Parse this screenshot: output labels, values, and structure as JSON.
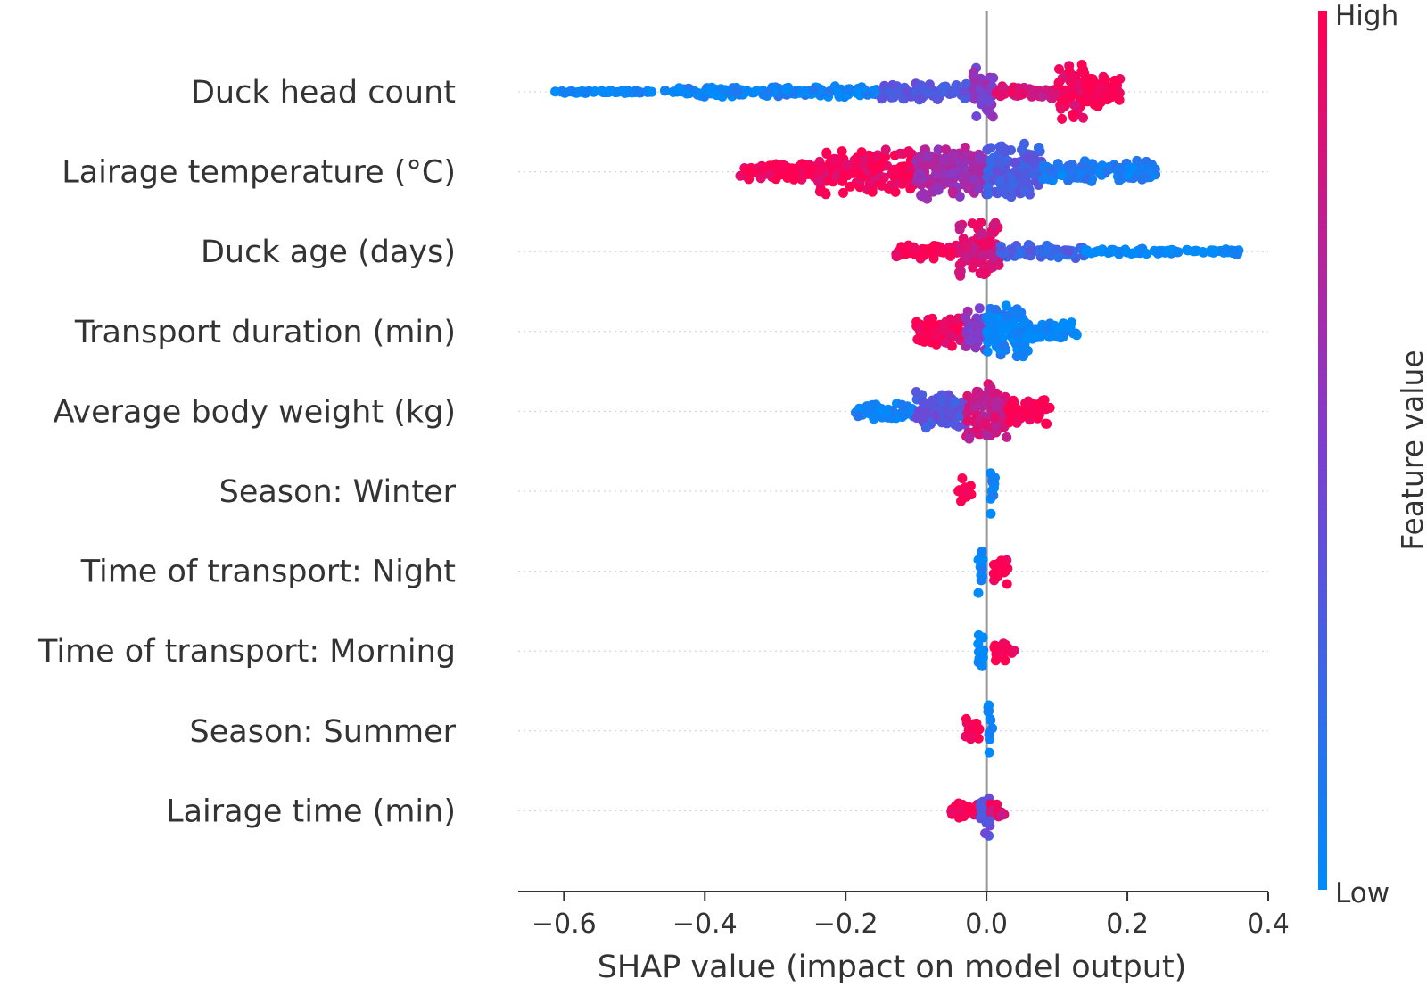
{
  "chart_data": {
    "type": "scatter",
    "subtype": "shap-beeswarm",
    "title": "",
    "xlabel": "SHAP value (impact on model output)",
    "ylabel": "",
    "xlim": [
      -0.665,
      0.4
    ],
    "xticks": [
      -0.6,
      -0.4,
      -0.2,
      0.0,
      0.2,
      0.4
    ],
    "xtick_labels": [
      "−0.6",
      "−0.4",
      "−0.2",
      "0.0",
      "0.2",
      "0.4"
    ],
    "zero_line": 0.0,
    "grid": "dotted horizontal guide per feature",
    "colorbar": {
      "label": "Feature value",
      "high_label": "High",
      "low_label": "Low",
      "low_color": "#008bfb",
      "mid_color": "#7c3fd0",
      "high_color": "#ff0052",
      "placement": "right"
    },
    "features": [
      {
        "name": "Duck head count",
        "range": [
          -0.62,
          0.19
        ],
        "segments": [
          {
            "x": [
              -0.62,
              -0.44
            ],
            "color": 0.0,
            "density": 0.05
          },
          {
            "x": [
              -0.44,
              -0.15
            ],
            "color": 0.05,
            "density": 0.2
          },
          {
            "x": [
              -0.15,
              -0.02
            ],
            "color": 0.35,
            "density": 0.3
          },
          {
            "x": [
              -0.02,
              0.01
            ],
            "color": 0.55,
            "density": 1.0
          },
          {
            "x": [
              0.01,
              0.1
            ],
            "color": 0.85,
            "density": 0.25
          },
          {
            "x": [
              0.1,
              0.14
            ],
            "color": 0.95,
            "density": 1.0
          },
          {
            "x": [
              0.14,
              0.19
            ],
            "color": 1.0,
            "density": 0.55
          }
        ]
      },
      {
        "name": "Lairage temperature (°C)",
        "range": [
          -0.35,
          0.24
        ],
        "segments": [
          {
            "x": [
              -0.35,
              -0.24
            ],
            "color": 1.0,
            "density": 0.3
          },
          {
            "x": [
              -0.24,
              -0.1
            ],
            "color": 0.95,
            "density": 0.8
          },
          {
            "x": [
              -0.1,
              0.0
            ],
            "color": 0.65,
            "density": 1.0
          },
          {
            "x": [
              0.0,
              0.08
            ],
            "color": 0.3,
            "density": 1.0
          },
          {
            "x": [
              0.08,
              0.24
            ],
            "color": 0.1,
            "density": 0.4
          }
        ]
      },
      {
        "name": "Duck age (days)",
        "range": [
          -0.13,
          0.36
        ],
        "segments": [
          {
            "x": [
              -0.13,
              -0.04
            ],
            "color": 1.0,
            "density": 0.25
          },
          {
            "x": [
              -0.04,
              0.02
            ],
            "color": 0.85,
            "density": 1.0
          },
          {
            "x": [
              0.02,
              0.14
            ],
            "color": 0.25,
            "density": 0.25
          },
          {
            "x": [
              0.14,
              0.36
            ],
            "color": 0.0,
            "density": 0.1
          }
        ]
      },
      {
        "name": "Transport duration (min)",
        "range": [
          -0.1,
          0.13
        ],
        "segments": [
          {
            "x": [
              -0.1,
              -0.03
            ],
            "color": 0.95,
            "density": 0.6
          },
          {
            "x": [
              -0.03,
              0.0
            ],
            "color": 0.55,
            "density": 0.9
          },
          {
            "x": [
              0.0,
              0.06
            ],
            "color": 0.05,
            "density": 1.0
          },
          {
            "x": [
              0.06,
              0.13
            ],
            "color": 0.0,
            "density": 0.35
          }
        ]
      },
      {
        "name": "Average body weight (kg)",
        "range": [
          -0.19,
          0.09
        ],
        "segments": [
          {
            "x": [
              -0.19,
              -0.1
            ],
            "color": 0.05,
            "density": 0.3
          },
          {
            "x": [
              -0.1,
              -0.03
            ],
            "color": 0.35,
            "density": 0.7
          },
          {
            "x": [
              -0.03,
              0.03
            ],
            "color": 0.8,
            "density": 1.0
          },
          {
            "x": [
              0.03,
              0.09
            ],
            "color": 1.0,
            "density": 0.45
          }
        ]
      },
      {
        "name": "Season: Winter",
        "range": [
          -0.04,
          0.01
        ],
        "segments": [
          {
            "x": [
              -0.04,
              -0.02
            ],
            "color": 1.0,
            "density": 0.45
          },
          {
            "x": [
              0.005,
              0.012
            ],
            "color": 0.0,
            "density": 1.0
          }
        ]
      },
      {
        "name": "Time of transport: Night",
        "range": [
          -0.01,
          0.03
        ],
        "segments": [
          {
            "x": [
              -0.012,
              -0.005
            ],
            "color": 0.0,
            "density": 1.0
          },
          {
            "x": [
              0.01,
              0.03
            ],
            "color": 1.0,
            "density": 0.45
          }
        ]
      },
      {
        "name": "Time of transport: Morning",
        "range": [
          -0.01,
          0.04
        ],
        "segments": [
          {
            "x": [
              -0.012,
              -0.004
            ],
            "color": 0.0,
            "density": 1.0
          },
          {
            "x": [
              0.01,
              0.04
            ],
            "color": 1.0,
            "density": 0.4
          }
        ]
      },
      {
        "name": "Season: Summer",
        "range": [
          -0.03,
          0.01
        ],
        "segments": [
          {
            "x": [
              -0.03,
              -0.01
            ],
            "color": 1.0,
            "density": 0.4
          },
          {
            "x": [
              0.002,
              0.009
            ],
            "color": 0.0,
            "density": 1.0
          }
        ]
      },
      {
        "name": "Lairage time (min)",
        "range": [
          -0.05,
          0.03
        ],
        "segments": [
          {
            "x": [
              -0.05,
              -0.01
            ],
            "color": 1.0,
            "density": 0.3
          },
          {
            "x": [
              -0.01,
              0.005
            ],
            "color": 0.4,
            "density": 1.0
          },
          {
            "x": [
              0.005,
              0.03
            ],
            "color": 0.9,
            "density": 0.3
          }
        ]
      }
    ]
  }
}
